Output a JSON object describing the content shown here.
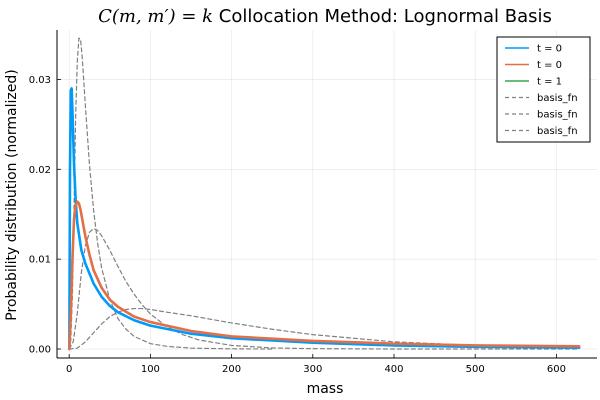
{
  "chart_data": {
    "type": "line",
    "title_math": "C(m, m′) = k",
    "title_rest": " Collocation Method: Lognormal Basis",
    "xlabel": "mass",
    "ylabel": "Probability distribution (normalized)",
    "xlim": [
      -15,
      650
    ],
    "ylim": [
      -0.001,
      0.0355
    ],
    "xticks": [
      0,
      100,
      200,
      300,
      400,
      500,
      600
    ],
    "xtick_labels": [
      "0",
      "100",
      "200",
      "300",
      "400",
      "500",
      "600"
    ],
    "yticks": [
      0.0,
      0.01,
      0.02,
      0.03
    ],
    "ytick_labels": [
      "0.00",
      "0.01",
      "0.02",
      "0.03"
    ],
    "grid": true,
    "legend_position": "top-right",
    "series": [
      {
        "name": "t = 0",
        "color": "#009af9",
        "style": "solid",
        "x": [
          0.2,
          1,
          2,
          3,
          4,
          5,
          6,
          8,
          10,
          15,
          20,
          30,
          40,
          50,
          60,
          80,
          100,
          150,
          200,
          300,
          400,
          500,
          628
        ],
        "y": [
          0,
          0.02,
          0.0288,
          0.029,
          0.0265,
          0.0235,
          0.0205,
          0.0165,
          0.014,
          0.011,
          0.0095,
          0.0073,
          0.0058,
          0.0048,
          0.0041,
          0.0032,
          0.0026,
          0.0017,
          0.0012,
          0.0007,
          0.0004,
          0.00025,
          0.00015
        ]
      },
      {
        "name": "t = 0",
        "color": "#e26f46",
        "style": "solid",
        "x": [
          0.2,
          2,
          4,
          6,
          8,
          10,
          12,
          14,
          16,
          20,
          25,
          30,
          40,
          50,
          60,
          80,
          100,
          150,
          200,
          300,
          400,
          500,
          628
        ],
        "y": [
          0,
          0.004,
          0.01,
          0.0145,
          0.016,
          0.0164,
          0.0162,
          0.0155,
          0.0145,
          0.0125,
          0.0105,
          0.0088,
          0.0068,
          0.0055,
          0.0047,
          0.0036,
          0.003,
          0.002,
          0.0014,
          0.0009,
          0.0006,
          0.0004,
          0.0003
        ]
      },
      {
        "name": "t = 1",
        "color": "#3da44d",
        "style": "solid",
        "x": [],
        "y": []
      },
      {
        "name": "basis_fn",
        "color": "#808080",
        "style": "dashed",
        "x": [
          0,
          2,
          4,
          6,
          8,
          10,
          12,
          14,
          16,
          18,
          20,
          25,
          30,
          35,
          40,
          50,
          60,
          70,
          80,
          100,
          120,
          150,
          200,
          250
        ],
        "y": [
          0,
          0.001,
          0.006,
          0.016,
          0.026,
          0.032,
          0.0346,
          0.0345,
          0.0325,
          0.0298,
          0.027,
          0.0205,
          0.0155,
          0.0118,
          0.009,
          0.0055,
          0.0034,
          0.0022,
          0.0014,
          0.0006,
          0.0003,
          0.0001,
          2e-05,
          0
        ]
      },
      {
        "name": "basis_fn",
        "color": "#808080",
        "style": "dashed",
        "x": [
          0,
          5,
          10,
          15,
          20,
          25,
          30,
          35,
          40,
          50,
          60,
          70,
          80,
          90,
          100,
          120,
          140,
          160,
          200,
          250,
          300,
          400,
          500,
          628
        ],
        "y": [
          0,
          0.0008,
          0.004,
          0.0085,
          0.0115,
          0.013,
          0.0134,
          0.0132,
          0.0126,
          0.011,
          0.0092,
          0.0075,
          0.0061,
          0.0049,
          0.0039,
          0.0025,
          0.0016,
          0.001,
          0.0004,
          0.00012,
          4e-05,
          0,
          0,
          0
        ]
      },
      {
        "name": "basis_fn",
        "color": "#808080",
        "style": "dashed",
        "x": [
          0,
          10,
          20,
          30,
          40,
          50,
          60,
          70,
          80,
          90,
          100,
          120,
          150,
          200,
          250,
          300,
          350,
          400,
          500,
          628
        ],
        "y": [
          0,
          0.0001,
          0.0008,
          0.0018,
          0.0028,
          0.0036,
          0.0041,
          0.0044,
          0.0045,
          0.0045,
          0.0044,
          0.0041,
          0.0037,
          0.0029,
          0.0022,
          0.0016,
          0.0012,
          0.0008,
          0.0004,
          0.00013
        ]
      }
    ]
  }
}
